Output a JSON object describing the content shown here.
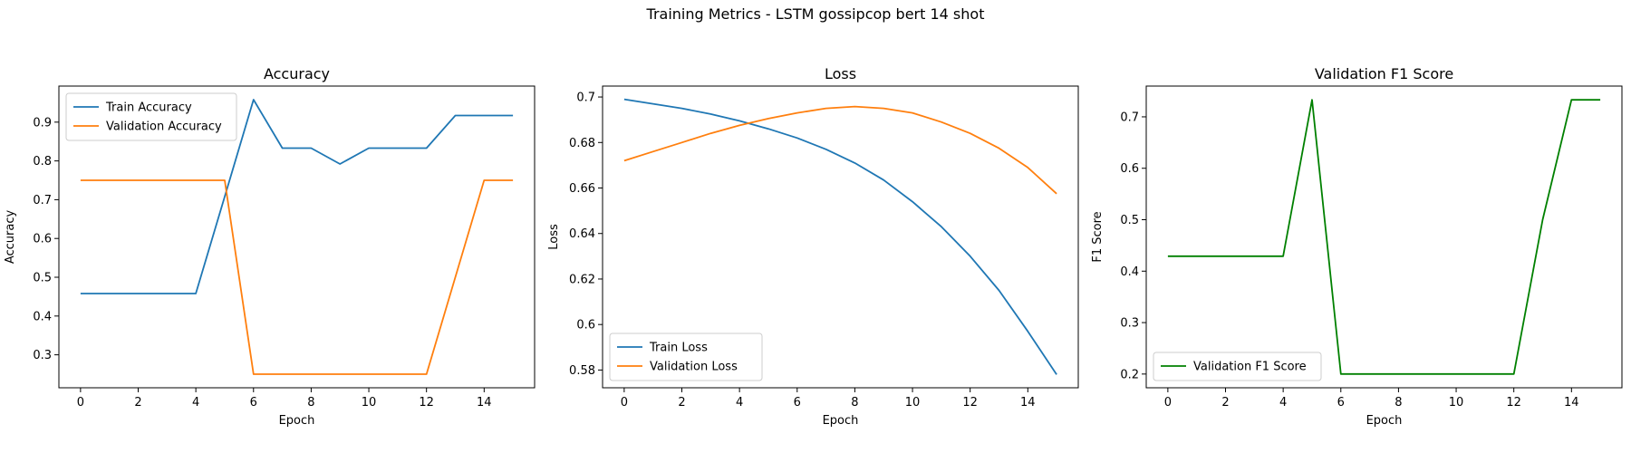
{
  "figure": {
    "suptitle": "Training Metrics - LSTM gossipcop bert 14 shot"
  },
  "colors": {
    "train": "#1f77b4",
    "validation": "#ff7f0e",
    "f1": "#008000"
  },
  "chart_data": [
    {
      "type": "line",
      "title": "Accuracy",
      "xlabel": "Epoch",
      "ylabel": "Accuracy",
      "xlim": [
        -0.75,
        15.75
      ],
      "ylim": [
        0.215,
        0.993
      ],
      "xticks": [
        0,
        2,
        4,
        6,
        8,
        10,
        12,
        14
      ],
      "yticks": [
        0.3,
        0.4,
        0.5,
        0.6,
        0.7,
        0.8,
        0.9
      ],
      "legend": "upper left",
      "x": [
        0,
        1,
        2,
        3,
        4,
        5,
        6,
        7,
        8,
        9,
        10,
        11,
        12,
        13,
        14,
        15
      ],
      "series": [
        {
          "name": "Train Accuracy",
          "color": "#1f77b4",
          "values": [
            0.458,
            0.458,
            0.458,
            0.458,
            0.458,
            0.708,
            0.958,
            0.833,
            0.833,
            0.792,
            0.833,
            0.833,
            0.833,
            0.917,
            0.917,
            0.917
          ]
        },
        {
          "name": "Validation Accuracy",
          "color": "#ff7f0e",
          "values": [
            0.75,
            0.75,
            0.75,
            0.75,
            0.75,
            0.75,
            0.25,
            0.25,
            0.25,
            0.25,
            0.25,
            0.25,
            0.25,
            0.5,
            0.75,
            0.75
          ]
        }
      ]
    },
    {
      "type": "line",
      "title": "Loss",
      "xlabel": "Epoch",
      "ylabel": "Loss",
      "xlim": [
        -0.75,
        15.75
      ],
      "ylim": [
        0.5722,
        0.7048
      ],
      "xticks": [
        0,
        2,
        4,
        6,
        8,
        10,
        12,
        14
      ],
      "yticks": [
        0.58,
        0.6,
        0.62,
        0.64,
        0.66,
        0.68,
        0.7
      ],
      "legend": "lower left",
      "x": [
        0,
        1,
        2,
        3,
        4,
        5,
        6,
        7,
        8,
        9,
        10,
        11,
        12,
        13,
        14,
        15
      ],
      "series": [
        {
          "name": "Train Loss",
          "color": "#1f77b4",
          "values": [
            0.699,
            0.697,
            0.695,
            0.6925,
            0.6895,
            0.686,
            0.682,
            0.677,
            0.671,
            0.6635,
            0.654,
            0.643,
            0.63,
            0.615,
            0.597,
            0.578
          ]
        },
        {
          "name": "Validation Loss",
          "color": "#ff7f0e",
          "values": [
            0.672,
            0.676,
            0.68,
            0.684,
            0.6875,
            0.6905,
            0.693,
            0.695,
            0.6958,
            0.695,
            0.693,
            0.689,
            0.684,
            0.6775,
            0.669,
            0.6575
          ]
        }
      ]
    },
    {
      "type": "line",
      "title": "Validation F1 Score",
      "xlabel": "Epoch",
      "ylabel": "F1 Score",
      "xlim": [
        -0.75,
        15.75
      ],
      "ylim": [
        0.1733,
        0.7598
      ],
      "xticks": [
        0,
        2,
        4,
        6,
        8,
        10,
        12,
        14
      ],
      "yticks": [
        0.2,
        0.3,
        0.4,
        0.5,
        0.6,
        0.7
      ],
      "legend": "lower left",
      "x": [
        0,
        1,
        2,
        3,
        4,
        5,
        6,
        7,
        8,
        9,
        10,
        11,
        12,
        13,
        14,
        15
      ],
      "series": [
        {
          "name": "Validation F1 Score",
          "color": "#008000",
          "values": [
            0.429,
            0.429,
            0.429,
            0.429,
            0.429,
            0.733,
            0.2,
            0.2,
            0.2,
            0.2,
            0.2,
            0.2,
            0.2,
            0.5,
            0.733,
            0.733
          ]
        }
      ]
    }
  ]
}
